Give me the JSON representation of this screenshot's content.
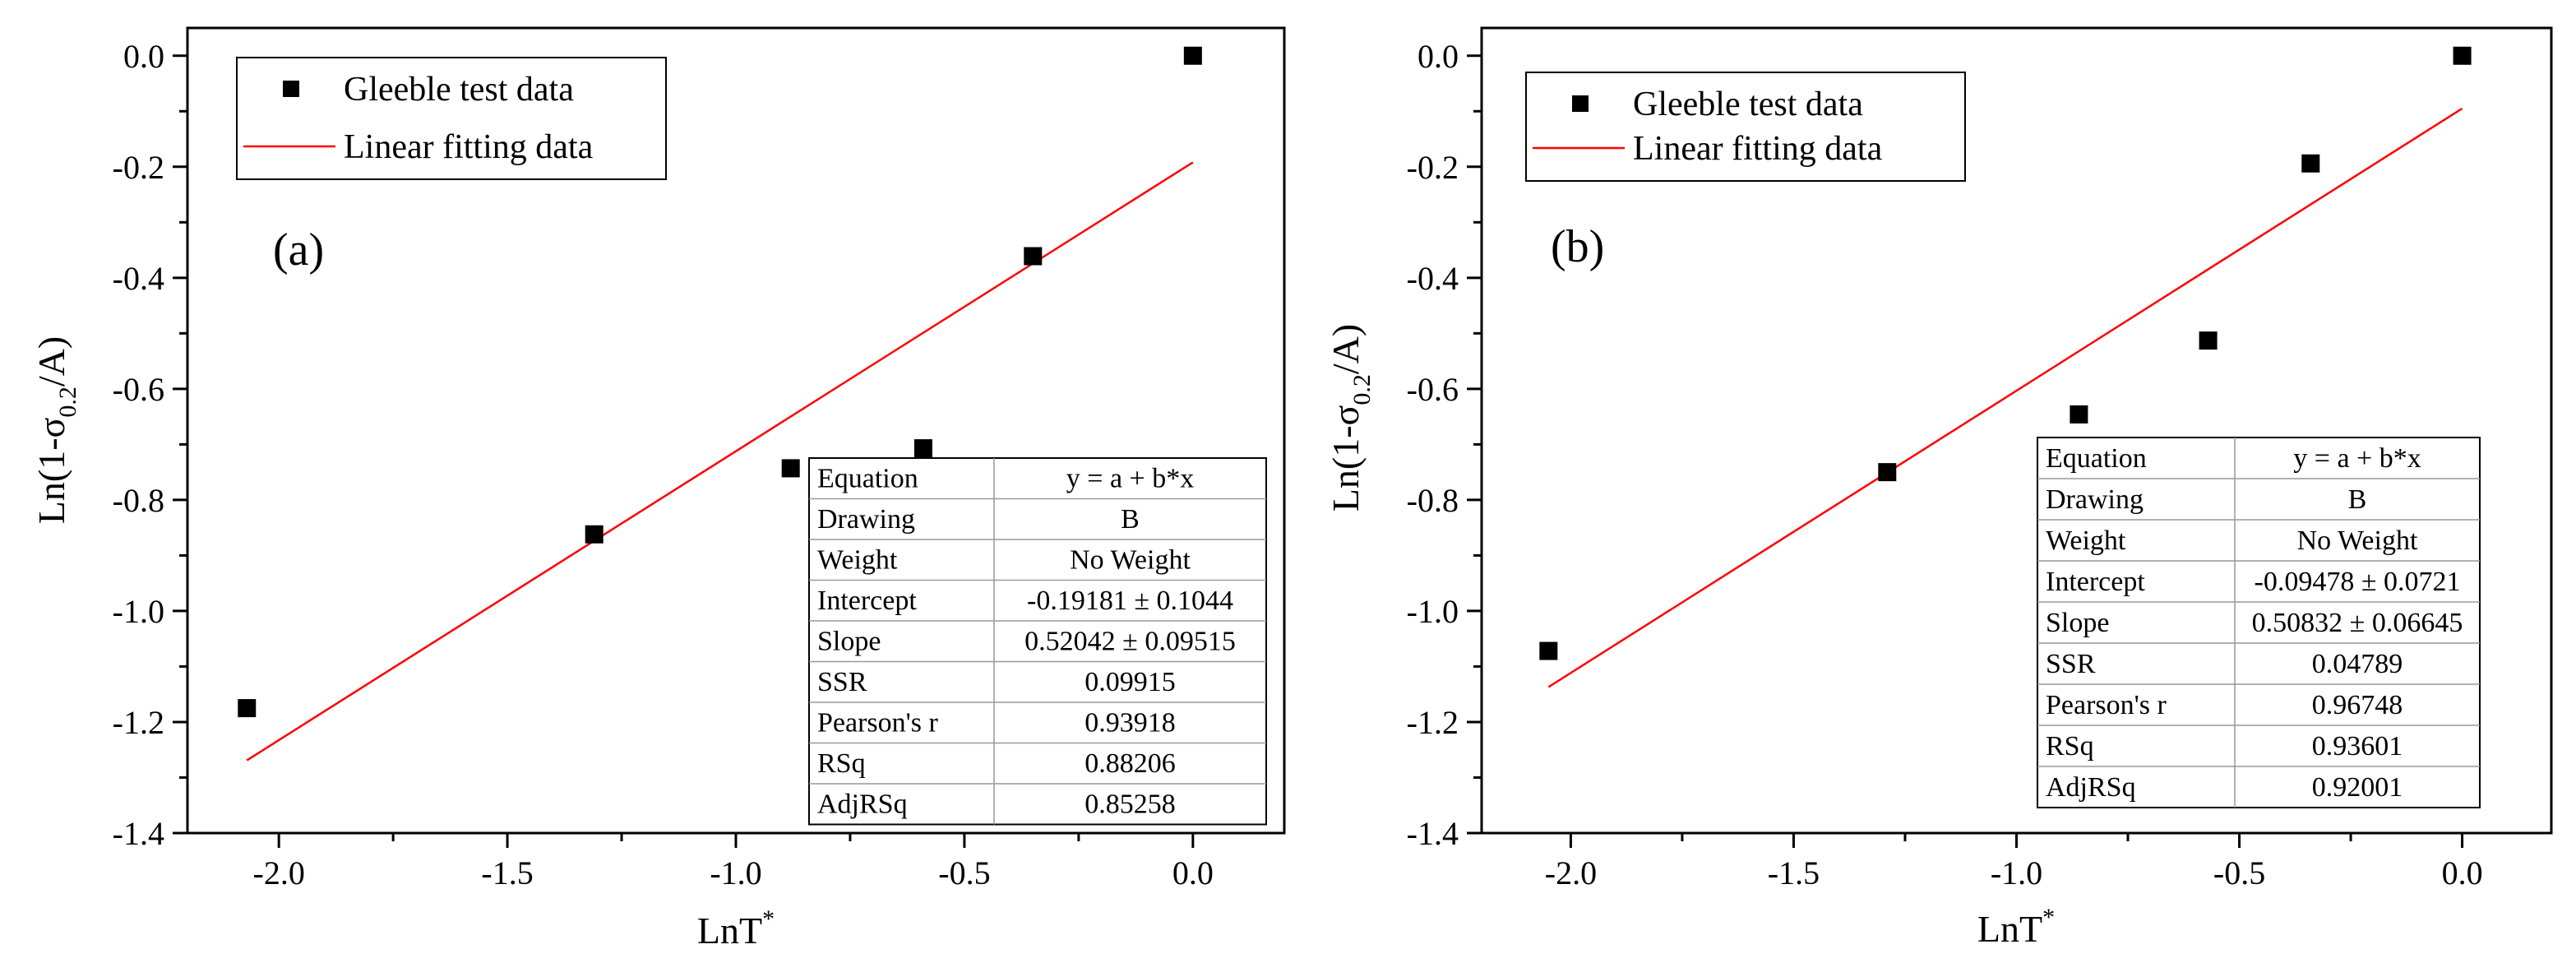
{
  "chart_data": [
    {
      "type": "scatter",
      "panel_label": "(a)",
      "xlabel": "LnT",
      "xlabel_sup": "*",
      "ylabel_main": "Ln(1-σ",
      "ylabel_sub": "0.2",
      "ylabel_end": "/A)",
      "xlim": [
        -2.2,
        0.2
      ],
      "ylim": [
        -1.4,
        0.05
      ],
      "xticks": [
        -2.0,
        -1.5,
        -1.0,
        -0.5,
        0.0
      ],
      "xtick_labels": [
        "-2.0",
        "-1.5",
        "-1.0",
        "-0.5",
        "0.0"
      ],
      "yticks": [
        0.0,
        -0.2,
        -0.4,
        -0.6,
        -0.8,
        -1.0,
        -1.2,
        -1.4
      ],
      "ytick_labels": [
        "0.0",
        "-0.2",
        "-0.4",
        "-0.6",
        "-0.8",
        "-1.0",
        "-1.2",
        "-1.4"
      ],
      "legend": {
        "scatter_label": "Gleeble test data",
        "line_label": "Linear fitting data"
      },
      "series": [
        {
          "name": "Gleeble test data",
          "kind": "scatter",
          "color": "#000000",
          "x": [
            -2.07,
            -1.31,
            -0.88,
            -0.59,
            -0.35,
            0.0
          ],
          "y": [
            -1.175,
            -0.862,
            -0.743,
            -0.707,
            -0.361,
            0.0
          ]
        },
        {
          "name": "Linear fitting data",
          "kind": "line",
          "color": "#ff0000",
          "x": [
            -2.07,
            0.0
          ],
          "y": [
            -1.269,
            -0.192
          ]
        }
      ],
      "fit_table": [
        [
          "Equation",
          "y = a + b*x"
        ],
        [
          "Drawing",
          "B"
        ],
        [
          "Weight",
          "No Weight"
        ],
        [
          "Intercept",
          "-0.19181 ± 0.1044"
        ],
        [
          "Slope",
          "0.52042 ± 0.09515"
        ],
        [
          "SSR",
          "0.09915"
        ],
        [
          "Pearson's r",
          "0.93918"
        ],
        [
          "RSq",
          "0.88206"
        ],
        [
          "AdjRSq",
          "0.85258"
        ]
      ]
    },
    {
      "type": "scatter",
      "panel_label": "(b)",
      "xlabel": "LnT",
      "xlabel_sup": "*",
      "ylabel_main": "Ln(1-σ",
      "ylabel_sub": "0.2",
      "ylabel_end": "/A)",
      "xlim": [
        -2.2,
        0.2
      ],
      "ylim": [
        -1.4,
        0.05
      ],
      "xticks": [
        -2.0,
        -1.5,
        -1.0,
        -0.5,
        0.0
      ],
      "xtick_labels": [
        "-2.0",
        "-1.5",
        "-1.0",
        "-0.5",
        "0.0"
      ],
      "yticks": [
        0.0,
        -0.2,
        -0.4,
        -0.6,
        -0.8,
        -1.0,
        -1.2,
        -1.4
      ],
      "ytick_labels": [
        "0.0",
        "-0.2",
        "-0.4",
        "-0.6",
        "-0.8",
        "-1.0",
        "-1.2",
        "-1.4"
      ],
      "legend": {
        "scatter_label": "Gleeble test data",
        "line_label": "Linear fitting data"
      },
      "series": [
        {
          "name": "Gleeble test data",
          "kind": "scatter",
          "color": "#000000",
          "x": [
            -2.05,
            -1.29,
            -0.86,
            -0.57,
            -0.34,
            0.0
          ],
          "y": [
            -1.072,
            -0.75,
            -0.646,
            -0.513,
            -0.194,
            0.0
          ]
        },
        {
          "name": "Linear fitting data",
          "kind": "line",
          "color": "#ff0000",
          "x": [
            -2.05,
            0.0
          ],
          "y": [
            -1.137,
            -0.095
          ]
        }
      ],
      "fit_table": [
        [
          "Equation",
          "y = a + b*x"
        ],
        [
          "Drawing",
          "B"
        ],
        [
          "Weight",
          "No Weight"
        ],
        [
          "Intercept",
          "-0.09478 ± 0.0721"
        ],
        [
          "Slope",
          "0.50832 ± 0.06645"
        ],
        [
          "SSR",
          "0.04789"
        ],
        [
          "Pearson's r",
          "0.96748"
        ],
        [
          "RSq",
          "0.93601"
        ],
        [
          "AdjRSq",
          "0.92001"
        ]
      ]
    }
  ]
}
